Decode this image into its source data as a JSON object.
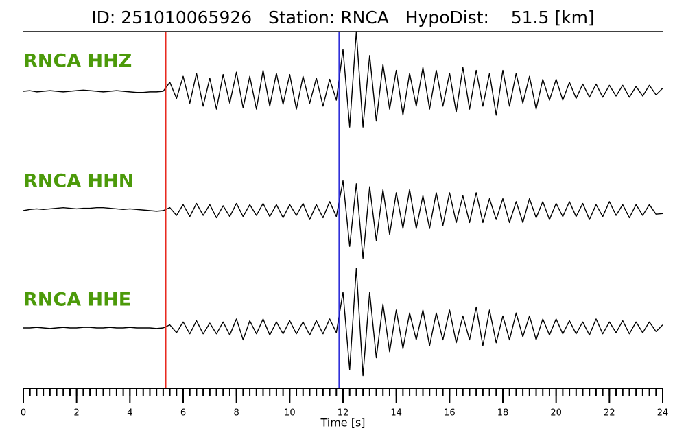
{
  "chart_data": {
    "type": "seismogram",
    "title": "ID: 251010065926   Station: RNCA   HypoDist:    51.5 [km]",
    "x_label": "Time [s]",
    "xlim": [
      0,
      24
    ],
    "xticks": [
      0,
      2,
      4,
      6,
      8,
      10,
      12,
      14,
      16,
      18,
      20,
      22,
      24
    ],
    "xminorticks": [
      0,
      0.25,
      0.5,
      0.75,
      1,
      1.25,
      1.5,
      1.75,
      2,
      2.25,
      2.5,
      2.75,
      3,
      3.25,
      3.5,
      3.75,
      4,
      4.25,
      4.5,
      4.75,
      5,
      5.25,
      5.5,
      5.75,
      6,
      6.25,
      6.5,
      6.75,
      7,
      7.25,
      7.5,
      7.75,
      8,
      8.25,
      8.5,
      8.75,
      9,
      9.25,
      9.5,
      9.75,
      10,
      10.25,
      10.5,
      10.75,
      11,
      11.25,
      11.5,
      11.75,
      12,
      12.25,
      12.5,
      12.75,
      13,
      13.25,
      13.5,
      13.75,
      14,
      14.25,
      14.5,
      14.75,
      15,
      15.25,
      15.5,
      15.75,
      16,
      16.25,
      16.5,
      16.75,
      17,
      17.25,
      17.5,
      17.75,
      18,
      18.25,
      18.5,
      18.75,
      19,
      19.25,
      19.5,
      19.75,
      20,
      20.25,
      20.5,
      20.75,
      21,
      21.25,
      21.5,
      21.75,
      22,
      22.25,
      22.5,
      22.75,
      23,
      23.25,
      23.5,
      23.75,
      24
    ],
    "ylim": [
      -1,
      1
    ],
    "vlines": [
      {
        "x": 5.35,
        "color": "#e8281e"
      },
      {
        "x": 11.85,
        "color": "#1f1fd6"
      }
    ],
    "x": [
      0,
      0.25,
      0.5,
      0.75,
      1,
      1.25,
      1.5,
      1.75,
      2,
      2.25,
      2.5,
      2.75,
      3,
      3.25,
      3.5,
      3.75,
      4,
      4.25,
      4.5,
      4.75,
      5,
      5.25,
      5.5,
      5.75,
      6,
      6.25,
      6.5,
      6.75,
      7,
      7.25,
      7.5,
      7.75,
      8,
      8.25,
      8.5,
      8.75,
      9,
      9.25,
      9.5,
      9.75,
      10,
      10.25,
      10.5,
      10.75,
      11,
      11.25,
      11.5,
      11.75,
      12,
      12.25,
      12.5,
      12.75,
      13,
      13.25,
      13.5,
      13.75,
      14,
      14.25,
      14.5,
      14.75,
      15,
      15.25,
      15.5,
      15.75,
      16,
      16.25,
      16.5,
      16.75,
      17,
      17.25,
      17.5,
      17.75,
      18,
      18.25,
      18.5,
      18.75,
      19,
      19.25,
      19.5,
      19.75,
      20,
      20.25,
      20.5,
      20.75,
      21,
      21.25,
      21.5,
      21.75,
      22,
      22.25,
      22.5,
      22.75,
      23,
      23.25,
      23.5,
      23.75,
      24
    ],
    "series": [
      {
        "name": "RNCA HHZ",
        "color": "#000000",
        "values": [
          0,
          0.01,
          -0.01,
          0,
          0.01,
          0,
          -0.01,
          0,
          0.01,
          0.02,
          0.01,
          0,
          -0.01,
          0,
          0.01,
          0,
          -0.01,
          -0.02,
          -0.02,
          -0.01,
          -0.01,
          0,
          0.15,
          -0.12,
          0.25,
          -0.2,
          0.3,
          -0.25,
          0.22,
          -0.3,
          0.28,
          -0.2,
          0.32,
          -0.28,
          0.25,
          -0.3,
          0.35,
          -0.25,
          0.3,
          -0.22,
          0.28,
          -0.3,
          0.25,
          -0.2,
          0.22,
          -0.25,
          0.2,
          -0.15,
          0.7,
          -0.6,
          1.0,
          -0.6,
          0.6,
          -0.5,
          0.45,
          -0.3,
          0.35,
          -0.4,
          0.3,
          -0.25,
          0.4,
          -0.3,
          0.35,
          -0.25,
          0.3,
          -0.35,
          0.4,
          -0.3,
          0.35,
          -0.25,
          0.3,
          -0.4,
          0.35,
          -0.25,
          0.3,
          -0.2,
          0.25,
          -0.3,
          0.2,
          -0.15,
          0.2,
          -0.15,
          0.15,
          -0.12,
          0.12,
          -0.1,
          0.12,
          -0.1,
          0.1,
          -0.08,
          0.1,
          -0.1,
          0.08,
          -0.08,
          0.1,
          -0.06,
          0.05
        ]
      },
      {
        "name": "RNCA HHN",
        "color": "#000000",
        "values": [
          0,
          0.02,
          0.03,
          0.02,
          0.03,
          0.04,
          0.05,
          0.04,
          0.03,
          0.04,
          0.04,
          0.05,
          0.05,
          0.04,
          0.03,
          0.02,
          0.03,
          0.02,
          0.01,
          0,
          -0.01,
          0,
          0.05,
          -0.08,
          0.1,
          -0.1,
          0.12,
          -0.08,
          0.1,
          -0.12,
          0.08,
          -0.1,
          0.12,
          -0.1,
          0.1,
          -0.08,
          0.12,
          -0.1,
          0.1,
          -0.12,
          0.1,
          -0.08,
          0.12,
          -0.15,
          0.1,
          -0.12,
          0.15,
          -0.1,
          0.5,
          -0.6,
          0.45,
          -0.8,
          0.4,
          -0.5,
          0.35,
          -0.4,
          0.3,
          -0.3,
          0.35,
          -0.3,
          0.25,
          -0.3,
          0.3,
          -0.25,
          0.3,
          -0.2,
          0.25,
          -0.2,
          0.3,
          -0.2,
          0.2,
          -0.15,
          0.2,
          -0.2,
          0.15,
          -0.2,
          0.2,
          -0.12,
          0.15,
          -0.15,
          0.12,
          -0.1,
          0.15,
          -0.1,
          0.12,
          -0.15,
          0.1,
          -0.1,
          0.15,
          -0.08,
          0.1,
          -0.12,
          0.1,
          -0.08,
          0.1,
          -0.06,
          -0.05
        ]
      },
      {
        "name": "RNCA HHE",
        "color": "#000000",
        "values": [
          0,
          0,
          0.01,
          0,
          -0.01,
          0,
          0.01,
          0,
          0,
          0.01,
          0.01,
          0,
          0,
          0.01,
          0,
          0,
          0.01,
          0,
          0,
          0,
          -0.01,
          0,
          0.05,
          -0.08,
          0.1,
          -0.1,
          0.12,
          -0.1,
          0.08,
          -0.1,
          0.1,
          -0.12,
          0.15,
          -0.2,
          0.12,
          -0.1,
          0.15,
          -0.12,
          0.1,
          -0.1,
          0.12,
          -0.1,
          0.1,
          -0.12,
          0.12,
          -0.1,
          0.15,
          -0.08,
          0.6,
          -0.7,
          1.0,
          -0.8,
          0.6,
          -0.5,
          0.4,
          -0.4,
          0.3,
          -0.35,
          0.25,
          -0.2,
          0.3,
          -0.3,
          0.25,
          -0.2,
          0.3,
          -0.25,
          0.2,
          -0.2,
          0.35,
          -0.3,
          0.3,
          -0.25,
          0.2,
          -0.2,
          0.25,
          -0.15,
          0.2,
          -0.2,
          0.15,
          -0.12,
          0.15,
          -0.1,
          0.12,
          -0.1,
          0.1,
          -0.12,
          0.15,
          -0.1,
          0.1,
          -0.08,
          0.12,
          -0.1,
          0.1,
          -0.08,
          0.1,
          -0.06,
          0.05
        ]
      }
    ]
  }
}
